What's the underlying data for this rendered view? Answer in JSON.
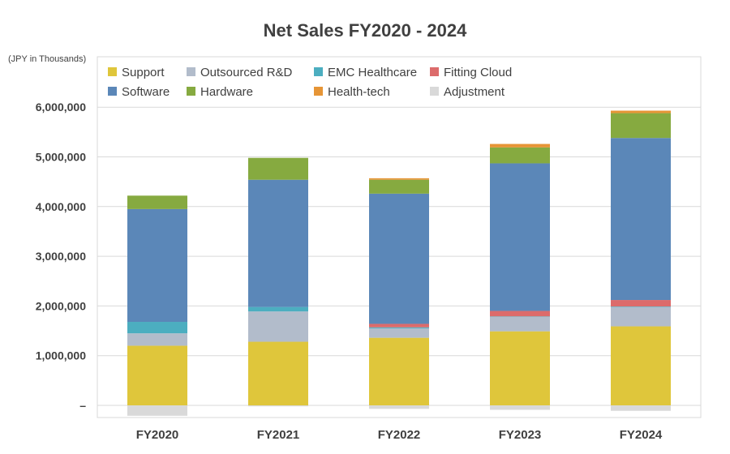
{
  "chart_data": {
    "type": "bar",
    "stacked": true,
    "title": "Net Sales FY2020 - 2024",
    "unit_label": "(JPY in Thousands)",
    "categories": [
      "FY2020",
      "FY2021",
      "FY2022",
      "FY2023",
      "FY2024"
    ],
    "yticks": [
      "–",
      "1,000,000",
      "2,000,000",
      "3,000,000",
      "4,000,000",
      "5,000,000",
      "6,000,000"
    ],
    "ytick_values": [
      0,
      1000000,
      2000000,
      3000000,
      4000000,
      5000000,
      6000000
    ],
    "ylim": [
      -230000,
      7000000
    ],
    "grid": true,
    "legend_position": "top-left",
    "series": [
      {
        "name": "Support",
        "color": "#dfc63b",
        "values": [
          1200000,
          1280000,
          1360000,
          1490000,
          1590000
        ]
      },
      {
        "name": "Outsourced R&D",
        "color": "#b2bccb",
        "values": [
          250000,
          610000,
          190000,
          290000,
          390000
        ]
      },
      {
        "name": "EMC Healthcare",
        "color": "#4caec0",
        "values": [
          230000,
          90000,
          20000,
          10000,
          10000
        ]
      },
      {
        "name": "Fitting Cloud",
        "color": "#dc6b6b",
        "values": [
          0,
          0,
          70000,
          110000,
          130000
        ]
      },
      {
        "name": "Software",
        "color": "#5b87b8",
        "values": [
          2270000,
          2560000,
          2620000,
          2970000,
          3260000
        ]
      },
      {
        "name": "Hardware",
        "color": "#86aa40",
        "values": [
          270000,
          440000,
          280000,
          320000,
          500000
        ]
      },
      {
        "name": "Health-tech",
        "color": "#e69536",
        "values": [
          0,
          0,
          30000,
          70000,
          50000
        ]
      },
      {
        "name": "Adjustment",
        "color": "#d9d9d9",
        "values": [
          -210000,
          -20000,
          -70000,
          -90000,
          -110000
        ]
      }
    ]
  }
}
